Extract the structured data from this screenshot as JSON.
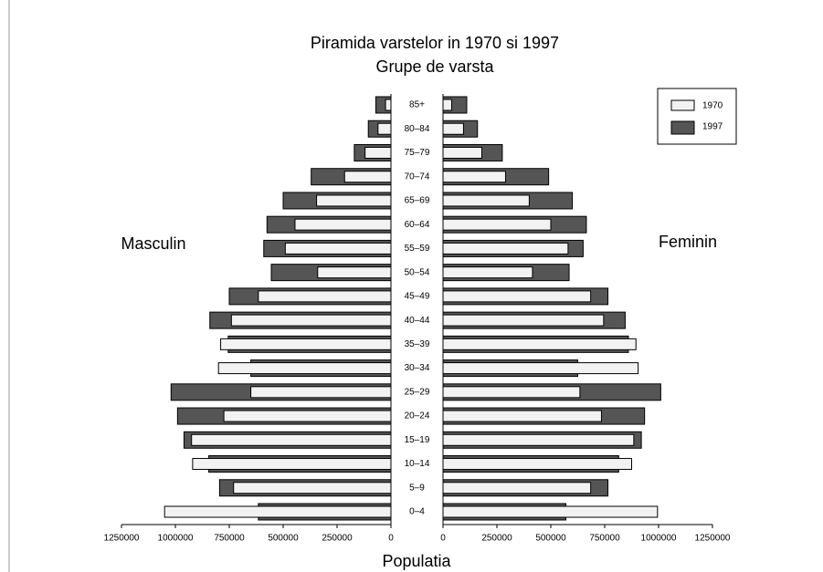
{
  "chart_data": {
    "type": "pyramid",
    "title": "Piramida varstelor in 1970 si 1997",
    "subtitle": "Grupe de varsta",
    "left_label": "Masculin",
    "right_label": "Feminin",
    "xlabel": "Populatia",
    "categories": [
      "0–4",
      "5–9",
      "10–14",
      "15–19",
      "20–24",
      "25–29",
      "30–34",
      "35–39",
      "40–44",
      "45–49",
      "50–54",
      "55–59",
      "60–64",
      "65–69",
      "70–74",
      "75–79",
      "80–84",
      "85+"
    ],
    "series": [
      {
        "name": "1970",
        "color": "#f2f2f2",
        "male": [
          1050000,
          730000,
          920000,
          925000,
          775000,
          650000,
          800000,
          790000,
          740000,
          615000,
          340000,
          490000,
          445000,
          345000,
          215000,
          120000,
          60000,
          25000
        ],
        "female": [
          995000,
          685000,
          875000,
          885000,
          735000,
          635000,
          905000,
          895000,
          745000,
          685000,
          415000,
          580000,
          500000,
          400000,
          290000,
          180000,
          95000,
          40000
        ]
      },
      {
        "name": "1997",
        "color": "#555555",
        "male": [
          615000,
          795000,
          845000,
          960000,
          990000,
          1020000,
          650000,
          755000,
          840000,
          750000,
          555000,
          590000,
          575000,
          500000,
          370000,
          170000,
          105000,
          70000
        ],
        "female": [
          570000,
          765000,
          815000,
          920000,
          935000,
          1010000,
          625000,
          860000,
          845000,
          765000,
          585000,
          650000,
          665000,
          600000,
          490000,
          275000,
          160000,
          110000
        ]
      }
    ],
    "xlim": [
      0,
      1250000
    ],
    "xticks": [
      1250000,
      1000000,
      750000,
      500000,
      250000,
      0
    ],
    "legend": "upper right"
  }
}
